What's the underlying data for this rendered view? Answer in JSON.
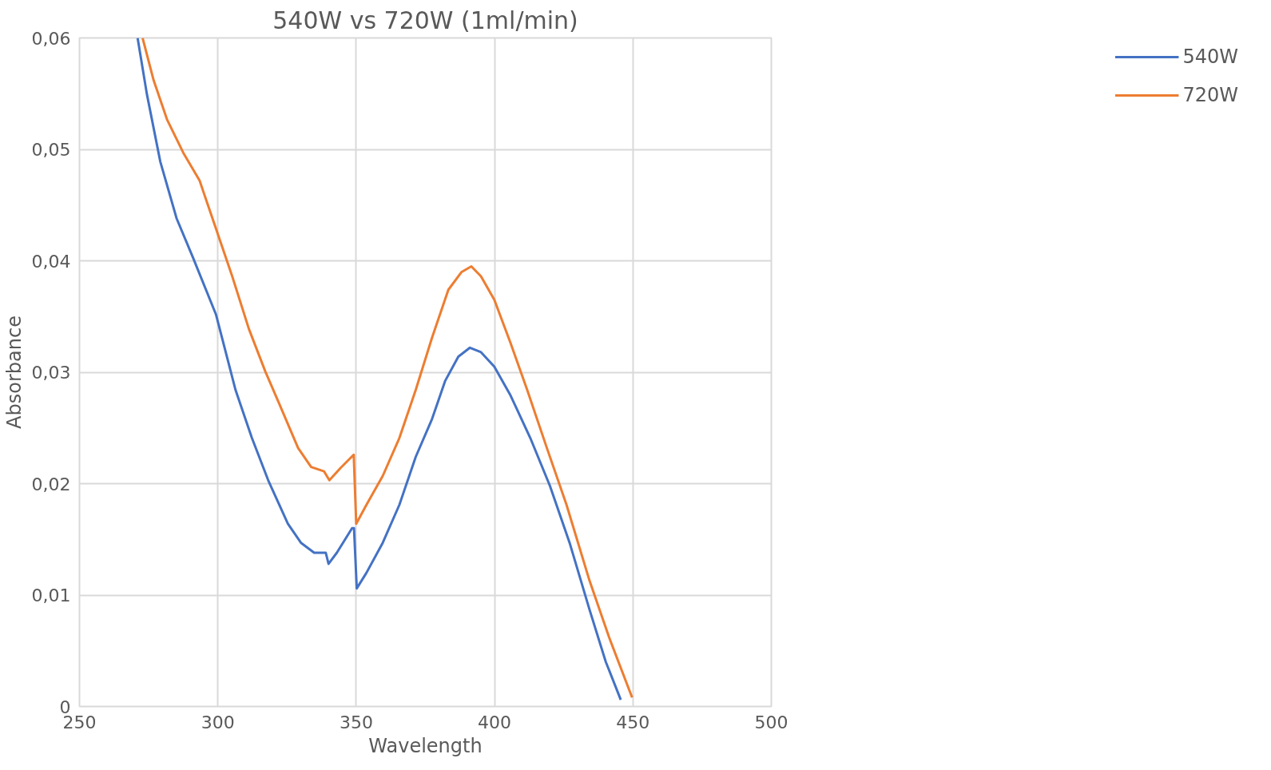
{
  "chart_data": {
    "type": "line",
    "title": "540W vs 720W (1ml/min)",
    "xlabel": "Wavelength",
    "ylabel": "Absorbance",
    "xlim": [
      250,
      500
    ],
    "xticks": [
      250,
      300,
      350,
      400,
      450,
      500
    ],
    "ylim": [
      0,
      0.06
    ],
    "yticks": [
      {
        "value": 0,
        "label": "0"
      },
      {
        "value": 0.01,
        "label": "0,01"
      },
      {
        "value": 0.02,
        "label": "0,02"
      },
      {
        "value": 0.03,
        "label": "0,03"
      },
      {
        "value": 0.04,
        "label": "0,04"
      },
      {
        "value": 0.05,
        "label": "0,05"
      },
      {
        "value": 0.06,
        "label": "0,06"
      }
    ],
    "grid": true,
    "legend": "right",
    "marker": "none",
    "line_style": "solid",
    "series": [
      {
        "name": "540W",
        "color": "#4472c4",
        "x": [
          271,
          274.4,
          279.2,
          285.1,
          291,
          299.3,
          306.4,
          312.3,
          318.2,
          325.3,
          330,
          334.8,
          339,
          340,
          343,
          348.5,
          349.2,
          350.2,
          353.7,
          359.6,
          365.6,
          371.5,
          377.4,
          382.1,
          386.9,
          391.1,
          395.1,
          399.9,
          405.8,
          412.9,
          420,
          427.1,
          434.3,
          440.2,
          445.6
        ],
        "values": [
          0.06,
          0.0549,
          0.0489,
          0.0438,
          0.0403,
          0.0352,
          0.0284,
          0.0241,
          0.0203,
          0.0164,
          0.0147,
          0.0138,
          0.0138,
          0.0128,
          0.0138,
          0.016,
          0.016,
          0.0106,
          0.012,
          0.0147,
          0.0181,
          0.0224,
          0.0258,
          0.0292,
          0.0314,
          0.0322,
          0.0318,
          0.0305,
          0.0279,
          0.0241,
          0.0198,
          0.0147,
          0.0087,
          0.004,
          0.0006
        ]
      },
      {
        "name": "720W",
        "color": "#ed7d31",
        "x": [
          272.8,
          276.8,
          281.6,
          287.5,
          293.4,
          299.3,
          305.2,
          311.2,
          317.1,
          323,
          329,
          333.7,
          338.4,
          340.3,
          344.3,
          349.1,
          350,
          353.7,
          359.6,
          365.6,
          371.5,
          377.4,
          383.3,
          388.1,
          391.6,
          395.1,
          399.9,
          405.8,
          411.8,
          418.9,
          426,
          434.3,
          441.4,
          449.7
        ],
        "values": [
          0.06,
          0.0562,
          0.0527,
          0.0497,
          0.0472,
          0.0429,
          0.0386,
          0.0339,
          0.0301,
          0.0267,
          0.0232,
          0.0215,
          0.0211,
          0.0203,
          0.0214,
          0.0226,
          0.0164,
          0.0181,
          0.0207,
          0.0241,
          0.0284,
          0.0331,
          0.0374,
          0.039,
          0.0395,
          0.0386,
          0.0365,
          0.0326,
          0.0284,
          0.0232,
          0.0181,
          0.0113,
          0.0062,
          0.0008
        ]
      }
    ]
  }
}
